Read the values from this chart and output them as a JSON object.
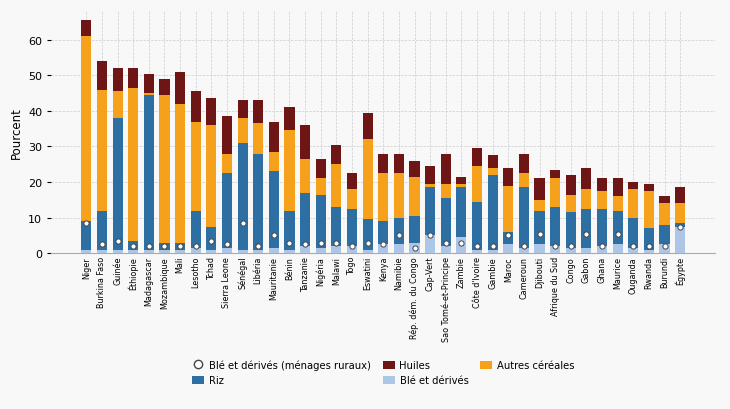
{
  "countries": [
    "Niger",
    "Burkina Faso",
    "Guinée",
    "Éthiopie",
    "Madagascar",
    "Mozambique",
    "Mali",
    "Lesotho",
    "Tchad",
    "Sierra Leone",
    "Sénégal",
    "Libéria",
    "Mauritanie",
    "Bénin",
    "Tanzanie",
    "Nigéria",
    "Malawi",
    "Togo",
    "Eswatini",
    "Kenya",
    "Namibie",
    "Rép. dém. du Congo",
    "Cap-Vert",
    "Sao Tomé-et-Principe",
    "Zambie",
    "Côte d'Ivoire",
    "Gambie",
    "Maroc",
    "Cameroun",
    "Djibouti",
    "Afrique du Sud",
    "Congo",
    "Gabon",
    "Ghana",
    "Maurice",
    "Ouganda",
    "Rwanda",
    "Burundi",
    "Égypte"
  ],
  "ble_derives": [
    1.0,
    1.0,
    1.0,
    1.0,
    1.0,
    1.0,
    1.0,
    1.5,
    1.0,
    1.5,
    1.0,
    1.0,
    1.5,
    1.0,
    2.0,
    1.5,
    2.0,
    2.0,
    1.0,
    2.5,
    2.5,
    3.0,
    5.0,
    2.0,
    4.5,
    1.0,
    1.0,
    2.5,
    1.5,
    2.5,
    2.0,
    1.5,
    1.5,
    2.0,
    2.5,
    1.5,
    1.0,
    2.5,
    7.5
  ],
  "riz": [
    8.0,
    11.0,
    37.0,
    2.5,
    43.5,
    2.0,
    2.0,
    10.5,
    6.5,
    21.0,
    30.0,
    27.0,
    21.5,
    11.0,
    15.0,
    15.0,
    11.0,
    10.5,
    8.5,
    6.5,
    7.5,
    7.5,
    13.5,
    13.5,
    14.0,
    13.5,
    21.0,
    3.5,
    17.0,
    9.5,
    11.0,
    10.0,
    11.0,
    10.5,
    9.5,
    8.5,
    6.0,
    5.5,
    1.0
  ],
  "autres_cereales": [
    52.0,
    34.0,
    7.5,
    43.0,
    0.5,
    41.5,
    39.0,
    25.0,
    28.5,
    5.5,
    7.0,
    8.5,
    5.5,
    22.5,
    9.5,
    4.5,
    12.0,
    5.5,
    22.5,
    13.5,
    12.5,
    11.0,
    1.0,
    4.0,
    1.0,
    10.0,
    2.0,
    13.0,
    4.0,
    3.0,
    8.0,
    5.0,
    5.5,
    5.0,
    4.0,
    8.0,
    10.5,
    6.0,
    5.5
  ],
  "huiles": [
    4.5,
    8.0,
    6.5,
    5.5,
    5.5,
    4.5,
    9.0,
    8.5,
    7.5,
    10.5,
    5.0,
    6.5,
    8.5,
    6.5,
    9.5,
    5.5,
    5.5,
    4.5,
    7.5,
    5.5,
    5.5,
    4.5,
    5.0,
    8.5,
    2.0,
    5.0,
    3.5,
    5.0,
    5.5,
    6.0,
    2.5,
    5.5,
    6.0,
    3.5,
    5.0,
    2.0,
    2.0,
    2.0,
    4.5
  ],
  "ble_ruraux": [
    8.5,
    2.5,
    3.5,
    2.0,
    2.0,
    2.0,
    2.0,
    2.0,
    3.5,
    2.5,
    8.5,
    2.0,
    5.0,
    3.0,
    2.5,
    3.0,
    3.0,
    2.0,
    3.0,
    2.5,
    5.0,
    1.5,
    5.0,
    3.0,
    3.0,
    2.0,
    2.0,
    5.0,
    2.0,
    5.5,
    2.0,
    2.0,
    5.5,
    2.0,
    5.5,
    2.0,
    2.0,
    2.0,
    7.5
  ],
  "color_ble": "#adc6e8",
  "color_riz": "#2d6fa3",
  "color_autres": "#f5a11c",
  "color_huiles": "#6e1515",
  "ylabel": "Pourcent",
  "ylim": [
    0,
    68
  ],
  "yticks": [
    0,
    10,
    20,
    30,
    40,
    50,
    60
  ],
  "background_color": "#f8f8f8",
  "grid_color": "#cccccc"
}
